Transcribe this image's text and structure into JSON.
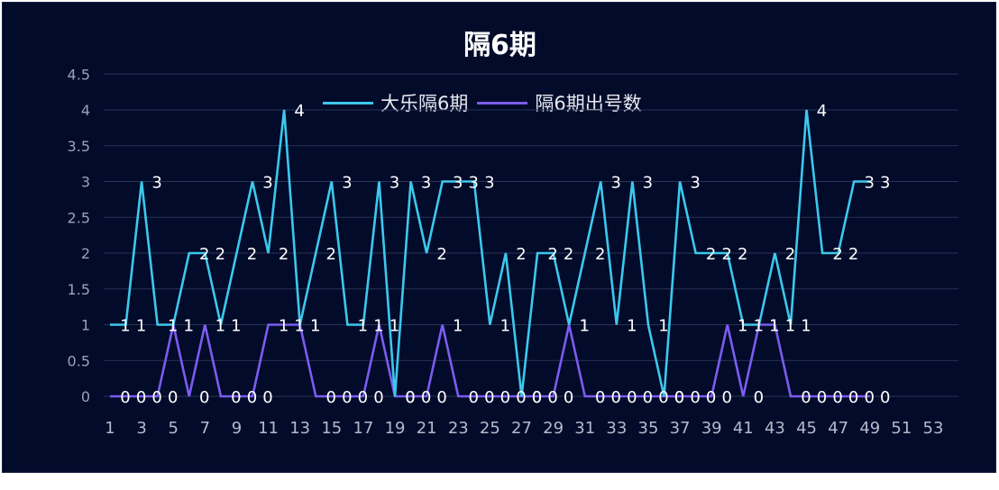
{
  "chart_data": {
    "type": "line",
    "title": "隔6期",
    "xlabel": "",
    "ylabel": "",
    "ylim": [
      0,
      4.5
    ],
    "yticks": [
      "0",
      "0.5",
      "1",
      "1.5",
      "2",
      "2.5",
      "3",
      "3.5",
      "4",
      "4.5"
    ],
    "xticks": [
      "1",
      "3",
      "5",
      "7",
      "9",
      "11",
      "13",
      "15",
      "17",
      "19",
      "21",
      "23",
      "25",
      "27",
      "29",
      "31",
      "33",
      "35",
      "37",
      "39",
      "41",
      "43",
      "45",
      "47",
      "49",
      "51",
      "53"
    ],
    "x_range": [
      1,
      53
    ],
    "grid": true,
    "legend_position": "top",
    "legend": [
      "大乐隔6期",
      "隔6期出号数"
    ],
    "x": [
      1,
      2,
      3,
      4,
      5,
      6,
      7,
      8,
      9,
      10,
      11,
      12,
      13,
      14,
      15,
      16,
      17,
      18,
      19,
      20,
      21,
      22,
      23,
      24,
      25,
      26,
      27,
      28,
      29,
      30,
      31,
      32,
      33,
      34,
      35,
      36,
      37,
      38,
      39,
      40,
      41,
      42,
      43,
      44,
      45,
      46,
      47,
      48,
      49
    ],
    "series": [
      {
        "name": "大乐隔6期",
        "color": "#3cc8ec",
        "values": [
          1,
          1,
          3,
          1,
          1,
          2,
          2,
          1,
          2,
          3,
          2,
          4,
          1,
          2,
          3,
          1,
          1,
          3,
          0,
          3,
          2,
          3,
          3,
          3,
          1,
          2,
          0,
          2,
          2,
          1,
          2,
          3,
          1,
          3,
          1,
          0,
          3,
          2,
          2,
          2,
          1,
          1,
          2,
          1,
          4,
          2,
          2,
          3,
          3
        ]
      },
      {
        "name": "隔6期出号数",
        "color": "#7b5cf0",
        "values": [
          0,
          0,
          0,
          0,
          1,
          0,
          1,
          0,
          0,
          0,
          1,
          1,
          1,
          0,
          0,
          0,
          0,
          1,
          0,
          0,
          0,
          1,
          0,
          0,
          0,
          0,
          0,
          0,
          0,
          1,
          0,
          0,
          0,
          0,
          0,
          0,
          0,
          0,
          0,
          1,
          0,
          1,
          1,
          0,
          0,
          0,
          0,
          0,
          0
        ]
      }
    ]
  },
  "colors": {
    "background": "#020b2a",
    "gridline": "#2a3354",
    "series1": "#3cc8ec",
    "series2": "#7b5cf0",
    "label": "#ffffff"
  }
}
